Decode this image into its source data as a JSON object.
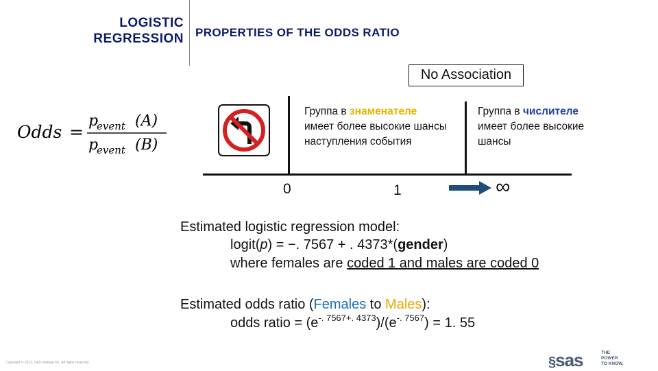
{
  "header": {
    "left_line1": "LOGISTIC",
    "left_line2": "REGRESSION",
    "right": "PROPERTIES OF THE ODDS RATIO"
  },
  "no_association": "No Association",
  "formula": {
    "lhs": "Odds",
    "equals": "=",
    "p": "p",
    "sub": "event",
    "num_arg": "(A)",
    "den_arg": "(B)"
  },
  "sign": {
    "icon": "no-left-turn-sign-icon",
    "red": "#d42020"
  },
  "notes": {
    "left": {
      "prefix": "Группа в ",
      "highlight": "знаменателе",
      "rest": "имеет более высокие шансы наступления события"
    },
    "right": {
      "prefix": "Группа в ",
      "highlight": "числителе",
      "rest": "имеет более высокие шансы"
    }
  },
  "axis": {
    "zero": "0",
    "one": "1",
    "infinity": "∞"
  },
  "model": {
    "label": "Estimated logistic regression model:",
    "eq_prefix": "logit(",
    "eq_var": "p",
    "eq_mid": ") = −. 7567 + . 4373*(",
    "eq_bold": "gender",
    "eq_suffix": ")",
    "coding_prefix": "where females are ",
    "coding_underlined": "coded 1 and males are coded 0"
  },
  "odds_ratio": {
    "label_prefix": "Estimated odds ratio (",
    "females": "Females",
    "to": " to ",
    "males": "Males",
    "label_suffix": "):",
    "eq_prefix": "odds ratio = (e",
    "exp1": "-. 7567+. 4373",
    "eq_mid": ")/(e",
    "exp2": "-. 7567",
    "eq_suffix": ") = 1. 55"
  },
  "footer": {
    "copyright": "Copyright © 2013, SAS Institute Inc. All rights reserved.",
    "logo": "sas",
    "tagline": [
      "THE",
      "POWER",
      "TO KNOW."
    ]
  },
  "colors": {
    "header_navy": "#0b1a6b",
    "females_blue": "#1a6fb5",
    "males_yellow": "#e8a800"
  }
}
